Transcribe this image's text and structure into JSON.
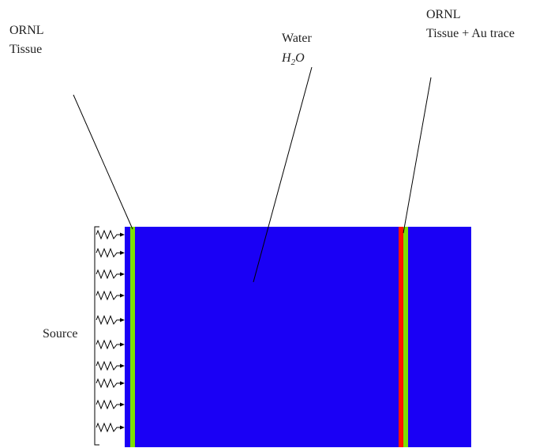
{
  "labels": {
    "left_layer": {
      "line1": "ORNL",
      "line2": "Tissue"
    },
    "water": {
      "line1": "Water",
      "formula": {
        "base": "H",
        "sub": "2",
        "rest": "O"
      }
    },
    "right_layer": {
      "line1": "ORNL",
      "line2": "Tissue + Au trace"
    },
    "source": "Source"
  }
}
